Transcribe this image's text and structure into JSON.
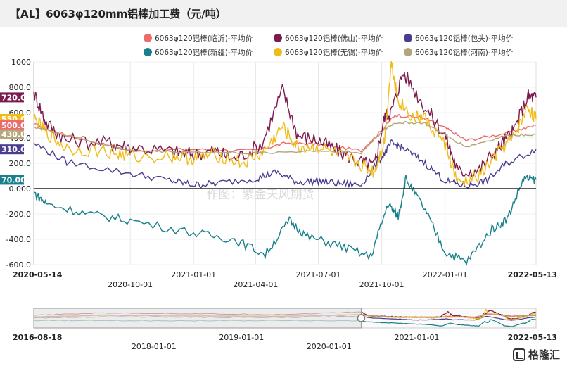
{
  "chart_data": {
    "type": "line",
    "title": "【AL】6063φ120mm铝棒加工费（元/吨）",
    "ylim": [
      -600,
      1000
    ],
    "yticks": [
      "1000",
      "800.0",
      "600.0",
      "400.0",
      "200.0",
      "0.000",
      "-200.0",
      "-400.0",
      "-600.0"
    ],
    "yticks_values": [
      1000,
      800,
      600,
      400,
      200,
      0,
      -200,
      -400,
      -600
    ],
    "x_start_label": "2020-05-14",
    "x_end_label": "2022-05-13",
    "xticks_top": [
      "2021-01-01",
      "2021-07-01",
      "2022-01-01"
    ],
    "xticks_bottom": [
      "2020-10-01",
      "2021-04-01",
      "2021-10-01"
    ],
    "watermark": "作图：紫金天风期货",
    "series": [
      {
        "name": "6063φ120铝棒(临沂)-平均价",
        "color": "#ee6b6b",
        "last_label": "500.0",
        "x": [
          "2020-05-14",
          "2020-07-01",
          "2020-10-01",
          "2021-01-01",
          "2021-04-01",
          "2021-05-15",
          "2021-07-01",
          "2021-09-01",
          "2021-10-01",
          "2021-10-20",
          "2021-12-01",
          "2022-01-01",
          "2022-02-01",
          "2022-04-01",
          "2022-05-13"
        ],
        "values": [
          510,
          420,
          300,
          310,
          300,
          360,
          350,
          300,
          460,
          580,
          560,
          480,
          380,
          440,
          500
        ]
      },
      {
        "name": "6063φ120铝棒(佛山)-平均价",
        "color": "#7d1a4f",
        "last_label": "720.0",
        "x": [
          "2020-05-14",
          "2020-06-01",
          "2020-07-01",
          "2020-09-01",
          "2020-10-01",
          "2020-12-01",
          "2021-01-01",
          "2021-02-01",
          "2021-03-01",
          "2021-04-10",
          "2021-05-10",
          "2021-06-01",
          "2021-07-01",
          "2021-08-01",
          "2021-09-01",
          "2021-09-20",
          "2021-10-05",
          "2021-10-15",
          "2021-11-01",
          "2021-12-01",
          "2022-01-01",
          "2022-01-20",
          "2022-02-20",
          "2022-03-20",
          "2022-04-10",
          "2022-05-01",
          "2022-05-13"
        ],
        "values": [
          760,
          520,
          380,
          360,
          330,
          290,
          270,
          300,
          230,
          350,
          780,
          420,
          380,
          290,
          210,
          180,
          560,
          610,
          920,
          660,
          420,
          130,
          150,
          330,
          450,
          730,
          720
        ]
      },
      {
        "name": "6063φ120铝棒(包头)-平均价",
        "color": "#4a3d8f",
        "last_label": "310.0",
        "x": [
          "2020-05-14",
          "2020-07-01",
          "2020-10-01",
          "2020-12-01",
          "2021-01-01",
          "2021-02-01",
          "2021-04-01",
          "2021-05-01",
          "2021-06-01",
          "2021-07-01",
          "2021-08-01",
          "2021-09-01",
          "2021-10-01",
          "2021-10-15",
          "2021-11-01",
          "2021-12-01",
          "2022-01-01",
          "2022-02-01",
          "2022-03-01",
          "2022-04-01",
          "2022-05-13"
        ],
        "values": [
          360,
          210,
          120,
          60,
          30,
          40,
          80,
          130,
          50,
          60,
          40,
          30,
          250,
          360,
          320,
          210,
          60,
          20,
          60,
          200,
          310
        ]
      },
      {
        "name": "6063φ120铝棒(新疆)-平均价",
        "color": "#18808a",
        "last_label": "70.00",
        "x": [
          "2020-05-14",
          "2020-06-01",
          "2020-08-01",
          "2020-10-01",
          "2021-01-01",
          "2021-03-01",
          "2021-04-15",
          "2021-05-20",
          "2021-06-15",
          "2021-08-01",
          "2021-09-15",
          "2021-10-10",
          "2021-10-25",
          "2021-11-05",
          "2021-12-01",
          "2022-01-01",
          "2022-02-01",
          "2022-03-10",
          "2022-04-01",
          "2022-04-25",
          "2022-05-13"
        ],
        "values": [
          -30,
          -120,
          -200,
          -250,
          -350,
          -400,
          -520,
          -250,
          -380,
          -450,
          -540,
          -120,
          -220,
          80,
          -150,
          -500,
          -580,
          -320,
          -240,
          80,
          70
        ]
      },
      {
        "name": "6063φ120铝棒(无锡)-平均价",
        "color": "#f0bc1a",
        "last_label": "550.0",
        "x": [
          "2020-05-14",
          "2020-06-01",
          "2020-07-01",
          "2020-09-01",
          "2020-10-01",
          "2020-12-01",
          "2021-01-01",
          "2021-02-01",
          "2021-03-15",
          "2021-04-15",
          "2021-05-10",
          "2021-06-01",
          "2021-07-01",
          "2021-08-01",
          "2021-09-01",
          "2021-09-20",
          "2021-10-05",
          "2021-10-15",
          "2021-10-25",
          "2021-11-15",
          "2021-12-01",
          "2022-01-01",
          "2022-01-20",
          "2022-02-20",
          "2022-03-20",
          "2022-04-10",
          "2022-05-01",
          "2022-05-13"
        ],
        "values": [
          560,
          440,
          320,
          290,
          250,
          260,
          240,
          270,
          200,
          300,
          490,
          320,
          330,
          260,
          190,
          130,
          380,
          1000,
          700,
          560,
          560,
          350,
          30,
          100,
          290,
          400,
          640,
          550
        ]
      },
      {
        "name": "6063φ120铝棒(河南)-平均价",
        "color": "#b5a57a",
        "last_label": "430.0",
        "x": [
          "2020-05-14",
          "2020-07-01",
          "2020-10-01",
          "2021-01-01",
          "2021-04-01",
          "2021-07-01",
          "2021-09-01",
          "2021-10-01",
          "2021-10-20",
          "2021-12-01",
          "2022-01-01",
          "2022-02-01",
          "2022-04-01",
          "2022-05-13"
        ],
        "values": [
          490,
          420,
          300,
          290,
          280,
          300,
          280,
          450,
          520,
          520,
          420,
          330,
          420,
          430
        ]
      }
    ],
    "navigator": {
      "start_label": "2016-08-18",
      "end_label": "2022-05-13",
      "ticks": [
        "2018-01-01",
        "2019-01-01",
        "2020-01-01",
        "2021-01-01"
      ]
    }
  },
  "branding": {
    "logo_text": "格隆汇"
  }
}
